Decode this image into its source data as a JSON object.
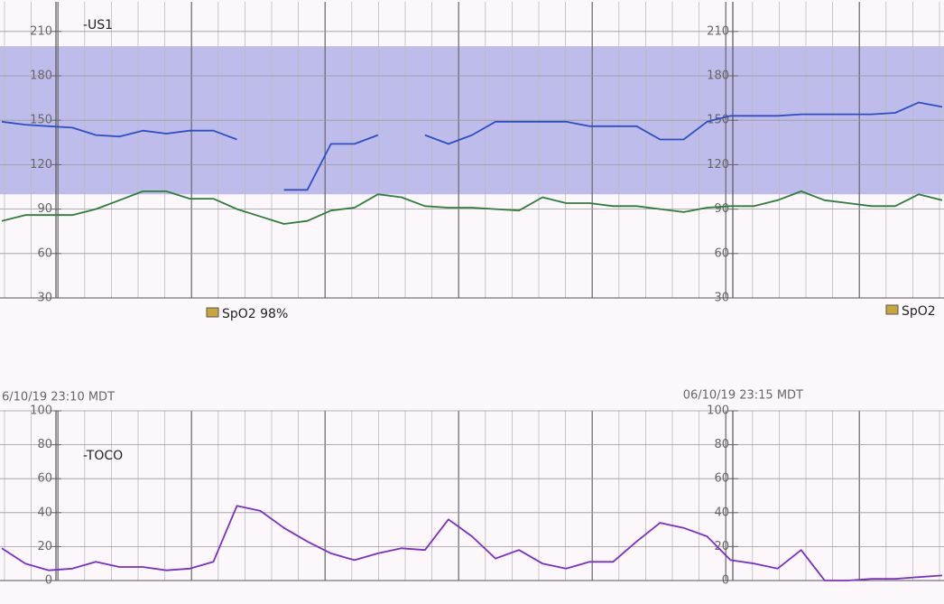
{
  "chart_data": [
    {
      "type": "line",
      "ylim": [
        30,
        230
      ],
      "yticks": [
        30,
        60,
        90,
        120,
        150,
        180,
        210
      ],
      "grid": true,
      "shaded_range": [
        100,
        200
      ],
      "band_color": "#aaa8e4",
      "annotations": [
        "SpO2 98%",
        "SpO2"
      ],
      "series": [
        {
          "name": "-US1",
          "color": "#2e4fc4",
          "values": [
            149,
            147,
            146,
            145,
            140,
            139,
            143,
            141,
            143,
            143,
            137,
            null,
            103,
            103,
            134,
            134,
            140,
            null,
            140,
            134,
            140,
            149,
            149,
            149,
            149,
            146,
            146,
            146,
            137,
            137,
            149,
            153,
            153,
            153,
            154,
            154,
            154,
            154,
            155,
            162,
            159
          ]
        },
        {
          "color": "#2f7d3a",
          "values": [
            82,
            86,
            86,
            86,
            90,
            96,
            102,
            102,
            97,
            97,
            90,
            85,
            80,
            82,
            89,
            91,
            100,
            98,
            92,
            91,
            91,
            90,
            89,
            98,
            94,
            94,
            92,
            92,
            90,
            88,
            91,
            92,
            92,
            96,
            102,
            96,
            94,
            92,
            92,
            100,
            96
          ]
        }
      ]
    },
    {
      "type": "line",
      "ylim": [
        0,
        100
      ],
      "yticks": [
        0,
        20,
        40,
        60,
        80,
        100
      ],
      "grid": true,
      "timestamps": [
        "6/10/19 23:10 MDT",
        "06/10/19 23:15 MDT"
      ],
      "series": [
        {
          "name": "-TOCO",
          "color": "#7a2fc8",
          "values": [
            19,
            10,
            6,
            7,
            11,
            8,
            8,
            6,
            7,
            11,
            44,
            41,
            31,
            23,
            16,
            12,
            16,
            19,
            18,
            36,
            26,
            13,
            18,
            10,
            7,
            11,
            11,
            23,
            34,
            31,
            26,
            12,
            10,
            7,
            18,
            0,
            0,
            1,
            1,
            2,
            3
          ]
        }
      ]
    }
  ]
}
